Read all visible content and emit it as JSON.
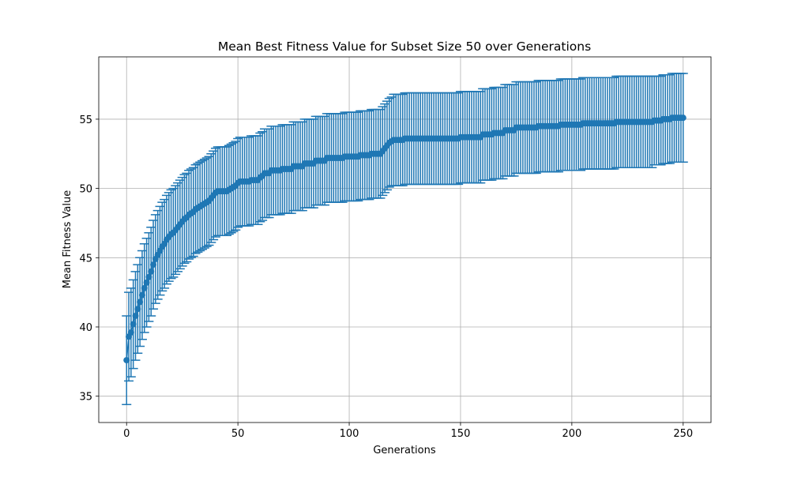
{
  "chart_data": {
    "type": "errorbar",
    "title": "Mean Best Fitness Value for Subset Size 50 over Generations",
    "x_label": "Generations",
    "y_label": "Mean Fitness Value",
    "color": "#1f77b4",
    "grid": true,
    "xlim": [
      -12.5,
      262.5
    ],
    "xticks": [
      0,
      50,
      100,
      150,
      200,
      250
    ],
    "ylim": [
      33.1,
      59.5
    ],
    "yticks": [
      35,
      40,
      45,
      50,
      55
    ],
    "x": [
      0,
      1,
      2,
      3,
      4,
      5,
      6,
      7,
      8,
      9,
      10,
      11,
      12,
      13,
      14,
      15,
      16,
      17,
      18,
      19,
      20,
      21,
      22,
      23,
      24,
      25,
      26,
      27,
      28,
      29,
      30,
      31,
      32,
      33,
      34,
      35,
      36,
      37,
      38,
      39,
      40,
      41,
      42,
      43,
      44,
      45,
      46,
      47,
      48,
      49,
      50,
      51,
      52,
      53,
      54,
      55,
      56,
      57,
      58,
      59,
      60,
      61,
      62,
      63,
      64,
      65,
      66,
      67,
      68,
      69,
      70,
      71,
      72,
      73,
      74,
      75,
      76,
      77,
      78,
      79,
      80,
      81,
      82,
      83,
      84,
      85,
      86,
      87,
      88,
      89,
      90,
      91,
      92,
      93,
      94,
      95,
      96,
      97,
      98,
      99,
      100,
      101,
      102,
      103,
      104,
      105,
      106,
      107,
      108,
      109,
      110,
      111,
      112,
      113,
      114,
      115,
      116,
      117,
      118,
      119,
      120,
      121,
      122,
      123,
      124,
      125,
      126,
      127,
      128,
      129,
      130,
      131,
      132,
      133,
      134,
      135,
      136,
      137,
      138,
      139,
      140,
      141,
      142,
      143,
      144,
      145,
      146,
      147,
      148,
      149,
      150,
      151,
      152,
      153,
      154,
      155,
      156,
      157,
      158,
      159,
      160,
      161,
      162,
      163,
      164,
      165,
      166,
      167,
      168,
      169,
      170,
      171,
      172,
      173,
      174,
      175,
      176,
      177,
      178,
      179,
      180,
      181,
      182,
      183,
      184,
      185,
      186,
      187,
      188,
      189,
      190,
      191,
      192,
      193,
      194,
      195,
      196,
      197,
      198,
      199,
      200,
      201,
      202,
      203,
      204,
      205,
      206,
      207,
      208,
      209,
      210,
      211,
      212,
      213,
      214,
      215,
      216,
      217,
      218,
      219,
      220,
      221,
      222,
      223,
      224,
      225,
      226,
      227,
      228,
      229,
      230,
      231,
      232,
      233,
      234,
      235,
      236,
      237,
      238,
      239,
      240,
      241,
      242,
      243,
      244,
      245,
      246,
      247,
      248,
      249,
      250
    ],
    "values": [
      37.6,
      39.3,
      39.6,
      40.2,
      40.8,
      41.3,
      41.8,
      42.3,
      42.8,
      43.2,
      43.6,
      44.0,
      44.5,
      44.9,
      45.2,
      45.5,
      45.8,
      46.0,
      46.3,
      46.5,
      46.7,
      46.8,
      47.0,
      47.2,
      47.4,
      47.6,
      47.8,
      47.9,
      48.1,
      48.2,
      48.3,
      48.5,
      48.6,
      48.7,
      48.8,
      48.9,
      49.0,
      49.1,
      49.3,
      49.5,
      49.7,
      49.8,
      49.8,
      49.8,
      49.8,
      49.8,
      49.9,
      50.0,
      50.1,
      50.2,
      50.4,
      50.5,
      50.5,
      50.5,
      50.5,
      50.5,
      50.6,
      50.6,
      50.6,
      50.6,
      50.8,
      50.9,
      51.1,
      51.1,
      51.1,
      51.3,
      51.3,
      51.3,
      51.3,
      51.3,
      51.4,
      51.4,
      51.4,
      51.4,
      51.4,
      51.6,
      51.6,
      51.6,
      51.6,
      51.6,
      51.8,
      51.8,
      51.8,
      51.8,
      51.8,
      52.0,
      52.0,
      52.0,
      52.0,
      52.0,
      52.2,
      52.2,
      52.2,
      52.2,
      52.2,
      52.2,
      52.2,
      52.2,
      52.3,
      52.3,
      52.3,
      52.3,
      52.3,
      52.3,
      52.3,
      52.4,
      52.4,
      52.4,
      52.4,
      52.4,
      52.5,
      52.5,
      52.5,
      52.5,
      52.5,
      52.7,
      52.9,
      53.1,
      53.3,
      53.4,
      53.5,
      53.5,
      53.5,
      53.5,
      53.5,
      53.6,
      53.6,
      53.6,
      53.6,
      53.6,
      53.6,
      53.6,
      53.6,
      53.6,
      53.6,
      53.6,
      53.6,
      53.6,
      53.6,
      53.6,
      53.6,
      53.6,
      53.6,
      53.6,
      53.6,
      53.6,
      53.6,
      53.6,
      53.6,
      53.6,
      53.7,
      53.7,
      53.7,
      53.7,
      53.7,
      53.7,
      53.7,
      53.7,
      53.7,
      53.7,
      53.9,
      53.9,
      53.9,
      53.9,
      53.9,
      54.0,
      54.0,
      54.0,
      54.0,
      54.0,
      54.2,
      54.2,
      54.2,
      54.2,
      54.2,
      54.4,
      54.4,
      54.4,
      54.4,
      54.4,
      54.4,
      54.4,
      54.4,
      54.4,
      54.4,
      54.5,
      54.5,
      54.5,
      54.5,
      54.5,
      54.5,
      54.5,
      54.5,
      54.5,
      54.5,
      54.6,
      54.6,
      54.6,
      54.6,
      54.6,
      54.6,
      54.6,
      54.6,
      54.6,
      54.6,
      54.7,
      54.7,
      54.7,
      54.7,
      54.7,
      54.7,
      54.7,
      54.7,
      54.7,
      54.7,
      54.7,
      54.7,
      54.7,
      54.7,
      54.7,
      54.8,
      54.8,
      54.8,
      54.8,
      54.8,
      54.8,
      54.8,
      54.8,
      54.8,
      54.8,
      54.8,
      54.8,
      54.8,
      54.8,
      54.8,
      54.8,
      54.8,
      54.9,
      54.9,
      54.9,
      54.9,
      55.0,
      55.0,
      55.0,
      55.0,
      55.1,
      55.1,
      55.1,
      55.1,
      55.1,
      55.1
    ],
    "errors": [
      3.2,
      3.2,
      3.2,
      3.2,
      3.2,
      3.2,
      3.2,
      3.2,
      3.2,
      3.2,
      3.2,
      3.2,
      3.2,
      3.2,
      3.2,
      3.2,
      3.2,
      3.2,
      3.2,
      3.2,
      3.2,
      3.2,
      3.2,
      3.2,
      3.2,
      3.2,
      3.2,
      3.2,
      3.2,
      3.2,
      3.2,
      3.2,
      3.2,
      3.2,
      3.2,
      3.2,
      3.2,
      3.2,
      3.2,
      3.2,
      3.2,
      3.2,
      3.2,
      3.2,
      3.2,
      3.2,
      3.2,
      3.2,
      3.2,
      3.2,
      3.2,
      3.2,
      3.2,
      3.2,
      3.2,
      3.2,
      3.2,
      3.2,
      3.2,
      3.2,
      3.2,
      3.2,
      3.2,
      3.2,
      3.2,
      3.2,
      3.2,
      3.2,
      3.2,
      3.2,
      3.2,
      3.2,
      3.2,
      3.2,
      3.2,
      3.2,
      3.2,
      3.2,
      3.2,
      3.2,
      3.2,
      3.2,
      3.2,
      3.2,
      3.2,
      3.2,
      3.2,
      3.2,
      3.2,
      3.2,
      3.2,
      3.2,
      3.2,
      3.2,
      3.2,
      3.2,
      3.2,
      3.2,
      3.2,
      3.2,
      3.2,
      3.2,
      3.2,
      3.2,
      3.2,
      3.2,
      3.2,
      3.2,
      3.2,
      3.2,
      3.2,
      3.2,
      3.2,
      3.2,
      3.2,
      3.2,
      3.2,
      3.2,
      3.2,
      3.2,
      3.3,
      3.3,
      3.3,
      3.3,
      3.3,
      3.3,
      3.3,
      3.3,
      3.3,
      3.3,
      3.3,
      3.3,
      3.3,
      3.3,
      3.3,
      3.3,
      3.3,
      3.3,
      3.3,
      3.3,
      3.3,
      3.3,
      3.3,
      3.3,
      3.3,
      3.3,
      3.3,
      3.3,
      3.3,
      3.3,
      3.3,
      3.3,
      3.3,
      3.3,
      3.3,
      3.3,
      3.3,
      3.3,
      3.3,
      3.3,
      3.3,
      3.3,
      3.3,
      3.3,
      3.3,
      3.3,
      3.3,
      3.3,
      3.3,
      3.3,
      3.3,
      3.3,
      3.3,
      3.3,
      3.3,
      3.3,
      3.3,
      3.3,
      3.3,
      3.3,
      3.3,
      3.3,
      3.3,
      3.3,
      3.3,
      3.3,
      3.3,
      3.3,
      3.3,
      3.3,
      3.3,
      3.3,
      3.3,
      3.3,
      3.3,
      3.3,
      3.3,
      3.3,
      3.3,
      3.3,
      3.3,
      3.3,
      3.3,
      3.3,
      3.3,
      3.3,
      3.3,
      3.3,
      3.3,
      3.3,
      3.3,
      3.3,
      3.3,
      3.3,
      3.3,
      3.3,
      3.3,
      3.3,
      3.3,
      3.3,
      3.3,
      3.3,
      3.3,
      3.3,
      3.3,
      3.3,
      3.3,
      3.3,
      3.3,
      3.3,
      3.3,
      3.3,
      3.3,
      3.3,
      3.3,
      3.3,
      3.3,
      3.2,
      3.2,
      3.2,
      3.2,
      3.2,
      3.2,
      3.2,
      3.2,
      3.2,
      3.2,
      3.2,
      3.2,
      3.2,
      3.2
    ]
  }
}
